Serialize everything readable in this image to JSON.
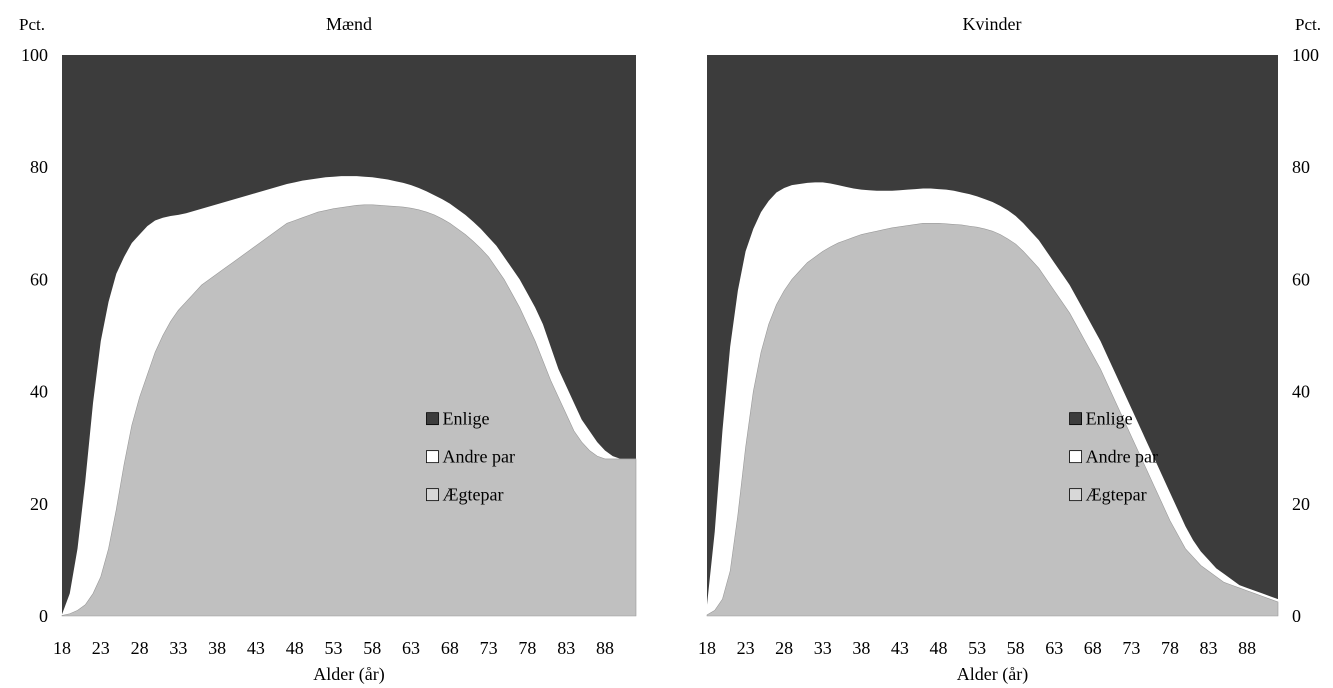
{
  "header_fragment": "",
  "chart_data": [
    {
      "type": "area",
      "stacked": true,
      "title": "Mænd",
      "xlabel": "Alder (år)",
      "ylabel": "Pct.",
      "ylim": [
        0,
        100
      ],
      "xlim": [
        18,
        92
      ],
      "yticks": [
        0,
        20,
        40,
        60,
        80,
        100
      ],
      "xticks": [
        "18",
        "23",
        "28",
        "33",
        "38",
        "43",
        "48",
        "53",
        "58",
        "63",
        "68",
        "73",
        "78",
        "83",
        "88"
      ],
      "x": [
        18,
        19,
        20,
        21,
        22,
        23,
        24,
        25,
        26,
        27,
        28,
        29,
        30,
        31,
        32,
        33,
        34,
        35,
        36,
        37,
        38,
        39,
        40,
        41,
        42,
        43,
        44,
        45,
        46,
        47,
        48,
        49,
        50,
        51,
        52,
        53,
        54,
        55,
        56,
        57,
        58,
        59,
        60,
        61,
        62,
        63,
        64,
        65,
        66,
        67,
        68,
        69,
        70,
        71,
        72,
        73,
        74,
        75,
        76,
        77,
        78,
        79,
        80,
        81,
        82,
        83,
        84,
        85,
        86,
        87,
        88,
        89,
        90,
        91,
        92
      ],
      "series": [
        {
          "name": "Enlige",
          "color": "#3c3c3c",
          "fill": 100
        },
        {
          "name": "Andre par",
          "color": "#ffffff",
          "cumulative": [
            0.3,
            4,
            12,
            24,
            38,
            49,
            56,
            61,
            64,
            66.5,
            68,
            69.5,
            70.5,
            71,
            71.3,
            71.5,
            71.8,
            72.2,
            72.6,
            73,
            73.4,
            73.8,
            74.2,
            74.6,
            75,
            75.4,
            75.8,
            76.2,
            76.6,
            77,
            77.3,
            77.6,
            77.8,
            78,
            78.2,
            78.3,
            78.4,
            78.4,
            78.4,
            78.3,
            78.2,
            78,
            77.8,
            77.5,
            77.2,
            76.8,
            76.3,
            75.7,
            75,
            74.3,
            73.5,
            72.5,
            71.5,
            70.3,
            69,
            67.5,
            66,
            64,
            62,
            60,
            57.5,
            55,
            52,
            48,
            44,
            41,
            38,
            35,
            33,
            31,
            29.5,
            28.5,
            28,
            28,
            28
          ]
        },
        {
          "name": "Ægtepar",
          "color": "#c0c0c0",
          "values": [
            0.1,
            0.4,
            1,
            2,
            4,
            7,
            12,
            19,
            27,
            34,
            39,
            43,
            47,
            50,
            52.5,
            54.5,
            56,
            57.5,
            59,
            60,
            61,
            62,
            63,
            64,
            65,
            66,
            67,
            68,
            69,
            70,
            70.5,
            71,
            71.5,
            72,
            72.3,
            72.6,
            72.8,
            73,
            73.2,
            73.3,
            73.3,
            73.2,
            73.1,
            73,
            72.9,
            72.7,
            72.4,
            72,
            71.5,
            70.8,
            70,
            69,
            68,
            66.8,
            65.5,
            64,
            62,
            60,
            57.5,
            55,
            52,
            49,
            45.5,
            42,
            39,
            36,
            33,
            31,
            29.5,
            28.5,
            28,
            28,
            28,
            28,
            28
          ]
        }
      ],
      "legend": {
        "entries": [
          "Enlige",
          "Andre par",
          "Ægtepar"
        ],
        "placement": "center-right"
      }
    },
    {
      "type": "area",
      "stacked": true,
      "title": "Kvinder",
      "xlabel": "Alder (år)",
      "ylabel": "Pct.",
      "ylim": [
        0,
        100
      ],
      "xlim": [
        18,
        92
      ],
      "yticks": [
        0,
        20,
        40,
        60,
        80,
        100
      ],
      "xticks": [
        "18",
        "23",
        "28",
        "33",
        "38",
        "43",
        "48",
        "53",
        "58",
        "63",
        "68",
        "73",
        "78",
        "83",
        "88"
      ],
      "x": [
        18,
        19,
        20,
        21,
        22,
        23,
        24,
        25,
        26,
        27,
        28,
        29,
        30,
        31,
        32,
        33,
        34,
        35,
        36,
        37,
        38,
        39,
        40,
        41,
        42,
        43,
        44,
        45,
        46,
        47,
        48,
        49,
        50,
        51,
        52,
        53,
        54,
        55,
        56,
        57,
        58,
        59,
        60,
        61,
        62,
        63,
        64,
        65,
        66,
        67,
        68,
        69,
        70,
        71,
        72,
        73,
        74,
        75,
        76,
        77,
        78,
        79,
        80,
        81,
        82,
        83,
        84,
        85,
        86,
        87,
        88,
        89,
        90,
        91,
        92
      ],
      "series": [
        {
          "name": "Enlige",
          "color": "#3c3c3c",
          "fill": 100
        },
        {
          "name": "Andre par",
          "color": "#ffffff",
          "cumulative": [
            2,
            15,
            33,
            48,
            58,
            65,
            69,
            72,
            74,
            75.5,
            76.3,
            76.8,
            77,
            77.2,
            77.3,
            77.3,
            77.1,
            76.8,
            76.5,
            76.2,
            76,
            75.9,
            75.8,
            75.8,
            75.8,
            75.9,
            76,
            76.1,
            76.2,
            76.2,
            76.1,
            76,
            75.8,
            75.5,
            75.2,
            74.8,
            74.3,
            73.8,
            73.1,
            72.3,
            71.3,
            70,
            68.5,
            67,
            65,
            63,
            61,
            59,
            56.5,
            54,
            51.5,
            49,
            46,
            43,
            40,
            37,
            34,
            31,
            28,
            25,
            22,
            19,
            16,
            13.5,
            11.5,
            10,
            8.5,
            7.5,
            6.5,
            5.5,
            5,
            4.5,
            4,
            3.5,
            3
          ]
        },
        {
          "name": "Ægtepar",
          "color": "#c0c0c0",
          "values": [
            0.2,
            1,
            3,
            8,
            18,
            30,
            40,
            47,
            52,
            55.5,
            58,
            60,
            61.5,
            63,
            64,
            65,
            65.8,
            66.5,
            67,
            67.5,
            68,
            68.3,
            68.6,
            68.9,
            69.2,
            69.4,
            69.6,
            69.8,
            70,
            70,
            70,
            69.9,
            69.8,
            69.7,
            69.5,
            69.3,
            69,
            68.6,
            68,
            67.2,
            66.3,
            65,
            63.5,
            62,
            60,
            58,
            56,
            54,
            51.5,
            49,
            46.5,
            44,
            41,
            38,
            35,
            32,
            29,
            26,
            23,
            20,
            17,
            14.5,
            12,
            10.5,
            9,
            8,
            7,
            6,
            5.5,
            5,
            4.5,
            4,
            3.5,
            3,
            2.5
          ]
        }
      ],
      "legend": {
        "entries": [
          "Enlige",
          "Andre par",
          "Ægtepar"
        ],
        "placement": "center-right"
      }
    }
  ]
}
